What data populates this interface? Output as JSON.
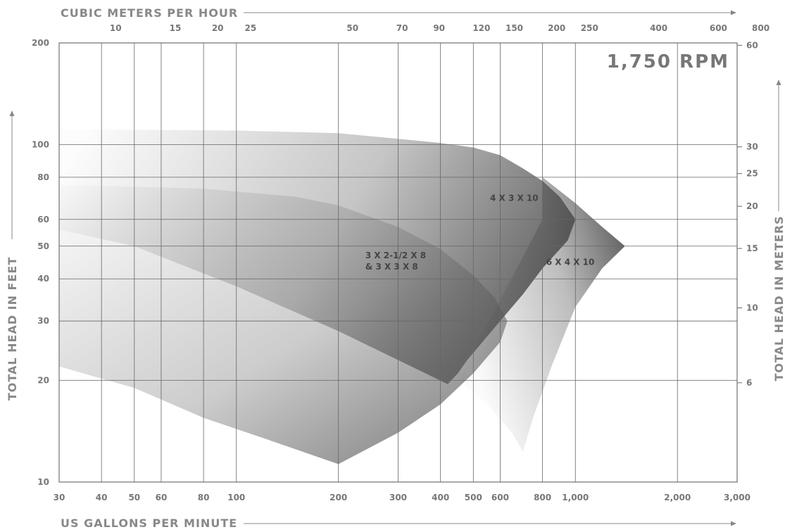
{
  "chart_data": {
    "type": "area",
    "title": "1,750 RPM",
    "top_axis_title": "CUBIC METERS PER HOUR",
    "bottom_axis_title": "US GALLONS PER MINUTE",
    "left_axis_title": "TOTAL HEAD IN FEET",
    "right_axis_title": "TOTAL HEAD IN METERS",
    "x_scale": "log",
    "y_scale": "log",
    "xlim": [
      30,
      3000
    ],
    "ylim": [
      10,
      200
    ],
    "grid": true,
    "x_ticks": [
      {
        "value": 30,
        "label": "30"
      },
      {
        "value": 40,
        "label": "40"
      },
      {
        "value": 50,
        "label": "50"
      },
      {
        "value": 60,
        "label": "60"
      },
      {
        "value": 80,
        "label": "80"
      },
      {
        "value": 100,
        "label": "100"
      },
      {
        "value": 200,
        "label": "200"
      },
      {
        "value": 300,
        "label": "300"
      },
      {
        "value": 400,
        "label": "400"
      },
      {
        "value": 500,
        "label": "500"
      },
      {
        "value": 600,
        "label": "600"
      },
      {
        "value": 800,
        "label": "800"
      },
      {
        "value": 1000,
        "label": "1,000"
      },
      {
        "value": 2000,
        "label": "2,000"
      },
      {
        "value": 3000,
        "label": "3,000"
      }
    ],
    "x_grid": [
      40,
      50,
      60,
      80,
      100,
      200,
      300,
      400,
      500,
      600,
      800,
      1000,
      2000
    ],
    "top_ticks": [
      {
        "value": 10,
        "label": "10"
      },
      {
        "value": 15,
        "label": "15"
      },
      {
        "value": 20,
        "label": "20"
      },
      {
        "value": 25,
        "label": "25"
      },
      {
        "value": 50,
        "label": "50"
      },
      {
        "value": 70,
        "label": "70"
      },
      {
        "value": 90,
        "label": "90"
      },
      {
        "value": 120,
        "label": "120"
      },
      {
        "value": 150,
        "label": "150"
      },
      {
        "value": 200,
        "label": "200"
      },
      {
        "value": 250,
        "label": "250"
      },
      {
        "value": 400,
        "label": "400"
      },
      {
        "value": 600,
        "label": "600"
      },
      {
        "value": 800,
        "label": "800"
      }
    ],
    "y_ticks": [
      {
        "value": 10,
        "label": "10"
      },
      {
        "value": 20,
        "label": "20"
      },
      {
        "value": 30,
        "label": "30"
      },
      {
        "value": 40,
        "label": "40"
      },
      {
        "value": 50,
        "label": "50"
      },
      {
        "value": 60,
        "label": "60"
      },
      {
        "value": 80,
        "label": "80"
      },
      {
        "value": 100,
        "label": "100"
      },
      {
        "value": 200,
        "label": "200"
      }
    ],
    "y_grid": [
      20,
      30,
      40,
      50,
      60,
      80,
      100
    ],
    "right_ticks": [
      {
        "value": 6,
        "label": "6"
      },
      {
        "value": 10,
        "label": "10"
      },
      {
        "value": 15,
        "label": "15"
      },
      {
        "value": 20,
        "label": "20"
      },
      {
        "value": 25,
        "label": "25"
      },
      {
        "value": 30,
        "label": "30"
      },
      {
        "value": 60,
        "label": "60"
      }
    ],
    "series": [
      {
        "name": "3 X 2-1/2 X 8 & 3 X 3 X 8",
        "label_lines": [
          "3 X 2-1/2 X 8",
          "& 3 X 3 X 8"
        ],
        "label_at": [
          240,
          46
        ],
        "color": "#6e6e6e",
        "outline": [
          [
            30,
            76
          ],
          [
            80,
            74
          ],
          [
            150,
            70
          ],
          [
            200,
            66
          ],
          [
            300,
            57
          ],
          [
            400,
            49
          ],
          [
            500,
            41
          ],
          [
            580,
            35
          ],
          [
            630,
            30
          ],
          [
            600,
            26
          ],
          [
            500,
            21
          ],
          [
            400,
            17
          ],
          [
            300,
            14
          ],
          [
            200,
            11.3
          ],
          [
            120,
            13.5
          ],
          [
            80,
            15.5
          ],
          [
            50,
            19
          ],
          [
            30,
            22
          ]
        ]
      },
      {
        "name": "4 X 3 X 10",
        "label_lines": [
          "4 X 3 X 10"
        ],
        "label_at": [
          560,
          68
        ],
        "color": "#5a5a5a",
        "outline": [
          [
            30,
            111
          ],
          [
            100,
            110
          ],
          [
            200,
            108
          ],
          [
            300,
            104
          ],
          [
            400,
            101
          ],
          [
            500,
            98
          ],
          [
            600,
            93
          ],
          [
            700,
            85
          ],
          [
            800,
            78
          ],
          [
            900,
            70
          ],
          [
            1000,
            60
          ],
          [
            950,
            52
          ],
          [
            800,
            43
          ],
          [
            700,
            36
          ],
          [
            600,
            30
          ],
          [
            480,
            23
          ],
          [
            450,
            21
          ],
          [
            420,
            19.5
          ],
          [
            200,
            28
          ],
          [
            100,
            38
          ],
          [
            50,
            50
          ],
          [
            30,
            56
          ]
        ]
      },
      {
        "name": "6 X 4 X 10",
        "label_lines": [
          "6 X 4 X 10"
        ],
        "label_at": [
          820,
          44
        ],
        "color": "#444444",
        "outline": [
          [
            800,
            80
          ],
          [
            1000,
            67
          ],
          [
            1200,
            57
          ],
          [
            1400,
            50
          ],
          [
            1200,
            43
          ],
          [
            1000,
            33
          ],
          [
            850,
            22
          ],
          [
            750,
            15.5
          ],
          [
            700,
            12.3
          ],
          [
            650,
            14
          ],
          [
            550,
            17
          ],
          [
            450,
            20
          ],
          [
            800,
            60
          ]
        ]
      }
    ]
  }
}
